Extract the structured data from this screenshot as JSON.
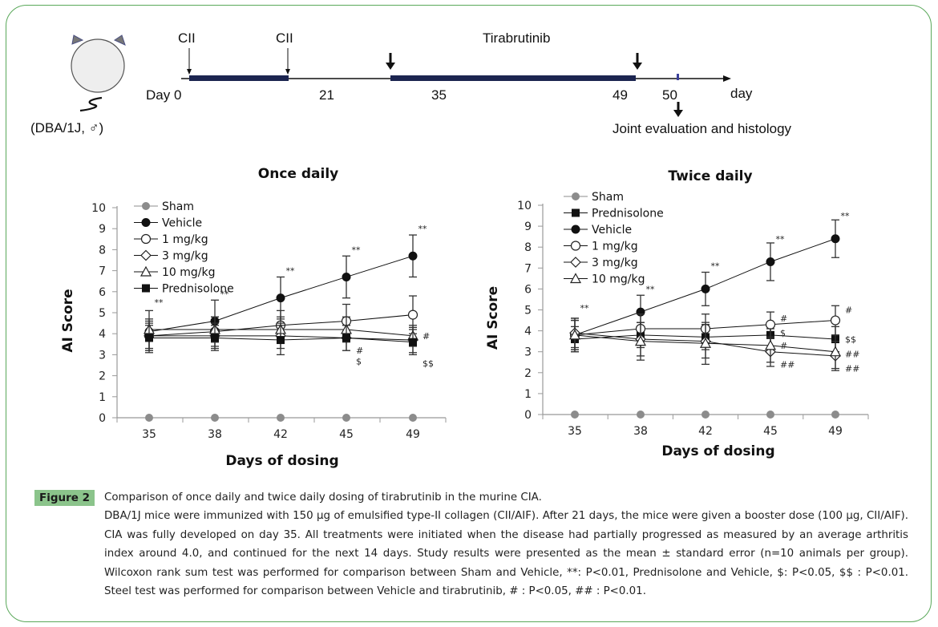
{
  "timeline": {
    "mouse_label": "(DBA/1J, ♂)",
    "day0_label": "Day 0",
    "immunization_label_1": "CII",
    "immunization_label_2": "CII",
    "treatment_label": "Tirabrutinib",
    "ticks": [
      "21",
      "35",
      "49",
      "50"
    ],
    "axis_unit": "day",
    "endpoint_label": "Joint evaluation and histology"
  },
  "chart_data": [
    {
      "type": "line",
      "title": "Once daily",
      "xlabel": "Days of dosing",
      "ylabel": "AI Score",
      "categories": [
        "35",
        "38",
        "42",
        "45",
        "49"
      ],
      "ylim": [
        0,
        10
      ],
      "yticks": [
        "0",
        "1",
        "2",
        "3",
        "4",
        "5",
        "6",
        "7",
        "8",
        "9",
        "10"
      ],
      "legend_position": "top-left",
      "series": [
        {
          "name": "Sham",
          "marker": "circle-gray",
          "values": [
            0,
            0,
            0,
            0,
            0
          ],
          "err": [
            0,
            0,
            0,
            0,
            0
          ]
        },
        {
          "name": "Vehicle",
          "marker": "circle-filled",
          "values": [
            4.1,
            4.6,
            5.7,
            6.7,
            7.7
          ],
          "err": [
            1.0,
            1.0,
            1.0,
            1.0,
            1.0
          ]
        },
        {
          "name": "1 mg/kg",
          "marker": "circle-open",
          "values": [
            3.9,
            4.1,
            4.4,
            4.6,
            4.9
          ],
          "err": [
            0.7,
            0.7,
            0.7,
            0.8,
            0.9
          ]
        },
        {
          "name": "3 mg/kg",
          "marker": "diamond-open",
          "values": [
            3.9,
            3.9,
            3.9,
            3.8,
            3.7
          ],
          "err": [
            0.6,
            0.6,
            0.6,
            0.6,
            0.6
          ]
        },
        {
          "name": "10 mg/kg",
          "marker": "triangle-open",
          "values": [
            4.2,
            4.2,
            4.2,
            4.2,
            3.9
          ],
          "err": [
            0.5,
            0.6,
            0.6,
            0.6,
            0.5
          ]
        },
        {
          "name": "Prednisolone",
          "marker": "square-filled",
          "values": [
            3.8,
            3.8,
            3.7,
            3.8,
            3.6
          ],
          "err": [
            0.6,
            0.6,
            0.7,
            0.6,
            0.6
          ]
        }
      ],
      "annotations": [
        {
          "x": "35",
          "text": "**",
          "y": 5.5
        },
        {
          "x": "38",
          "text": "**",
          "y": 5.9
        },
        {
          "x": "42",
          "text": "**",
          "y": 7.0
        },
        {
          "x": "45",
          "text": "**",
          "y": 8.0
        },
        {
          "x": "49",
          "text": "**",
          "y": 9.0
        },
        {
          "x": "49",
          "text": "#",
          "y": 3.9,
          "side": "right"
        },
        {
          "x": "45",
          "text": "#",
          "y": 3.2,
          "side": "right"
        },
        {
          "x": "45",
          "text": "$",
          "y": 2.7,
          "side": "right"
        },
        {
          "x": "49",
          "text": "$$",
          "y": 2.6,
          "side": "right"
        }
      ]
    },
    {
      "type": "line",
      "title": "Twice daily",
      "xlabel": "Days of dosing",
      "ylabel": "AI Score",
      "categories": [
        "35",
        "38",
        "42",
        "45",
        "49"
      ],
      "ylim": [
        0,
        10
      ],
      "yticks": [
        "0",
        "1",
        "2",
        "3",
        "4",
        "5",
        "6",
        "7",
        "8",
        "9",
        "10"
      ],
      "legend_position": "top-left",
      "series": [
        {
          "name": "Sham",
          "marker": "circle-gray",
          "values": [
            0,
            0,
            0,
            0,
            0
          ],
          "err": [
            0,
            0,
            0,
            0,
            0
          ]
        },
        {
          "name": "Prednisolone",
          "marker": "square-filled",
          "values": [
            3.6,
            3.8,
            3.7,
            3.8,
            3.6
          ],
          "err": [
            0.6,
            0.6,
            0.6,
            0.6,
            0.6
          ]
        },
        {
          "name": "Vehicle",
          "marker": "circle-filled",
          "values": [
            3.8,
            4.9,
            6.0,
            7.3,
            8.4
          ],
          "err": [
            0.8,
            0.8,
            0.8,
            0.9,
            0.9
          ]
        },
        {
          "name": "1 mg/kg",
          "marker": "circle-open",
          "values": [
            3.8,
            4.1,
            4.1,
            4.3,
            4.5
          ],
          "err": [
            0.7,
            0.7,
            0.7,
            0.6,
            0.7
          ]
        },
        {
          "name": "3 mg/kg",
          "marker": "diamond-open",
          "values": [
            3.9,
            3.6,
            3.5,
            3.0,
            2.8
          ],
          "err": [
            0.7,
            0.8,
            0.8,
            0.7,
            0.7
          ]
        },
        {
          "name": "10 mg/kg",
          "marker": "triangle-open",
          "values": [
            3.8,
            3.5,
            3.4,
            3.3,
            3.0
          ],
          "err": [
            0.7,
            0.9,
            1.0,
            0.8,
            0.8
          ]
        }
      ],
      "annotations": [
        {
          "x": "35",
          "text": "**",
          "y": 5.1
        },
        {
          "x": "38",
          "text": "**",
          "y": 6.0
        },
        {
          "x": "42",
          "text": "**",
          "y": 7.1
        },
        {
          "x": "45",
          "text": "**",
          "y": 8.4
        },
        {
          "x": "49",
          "text": "**",
          "y": 9.5
        },
        {
          "x": "45",
          "text": "#",
          "y": 4.6,
          "side": "right"
        },
        {
          "x": "49",
          "text": "#",
          "y": 5.0,
          "side": "right"
        },
        {
          "x": "45",
          "text": "$",
          "y": 3.9,
          "side": "right"
        },
        {
          "x": "49",
          "text": "$$",
          "y": 3.6,
          "side": "right"
        },
        {
          "x": "45",
          "text": "#",
          "y": 3.3,
          "side": "right"
        },
        {
          "x": "49",
          "text": "##",
          "y": 2.9,
          "side": "right"
        },
        {
          "x": "45",
          "text": "##",
          "y": 2.4,
          "side": "right"
        },
        {
          "x": "49",
          "text": "##",
          "y": 2.2,
          "side": "right"
        }
      ]
    }
  ],
  "caption": {
    "figure_label": "Figure 2",
    "title": "Comparison of once daily and twice daily dosing of tirabrutinib in the murine CIA.",
    "body": "DBA/1J mice were immunized with 150 µg of emulsified type-II collagen (CII/AIF). After 21 days, the mice were given a booster dose (100 µg, CII/AIF). CIA was fully developed on day 35. All treatments were initiated when the disease had partially progressed as measured by an average arthritis index around 4.0, and continued for the next 14 days. Study results were presented as the mean ± standard error (n=10 animals per group). Wilcoxon rank sum test was performed for comparison between Sham and Vehicle, **: P<0.01, Prednisolone and Vehicle, $: P<0.05, $$ : P<0.01. Steel test was performed for comparison between Vehicle and tirabrutinib, # : P<0.05, ## : P<0.01."
  },
  "colors": {
    "frame": "#5aa85a",
    "figure_label_bg": "#8bc48b",
    "timeline_bar": "#1c2550",
    "sham_gray": "#8c8c8c"
  }
}
